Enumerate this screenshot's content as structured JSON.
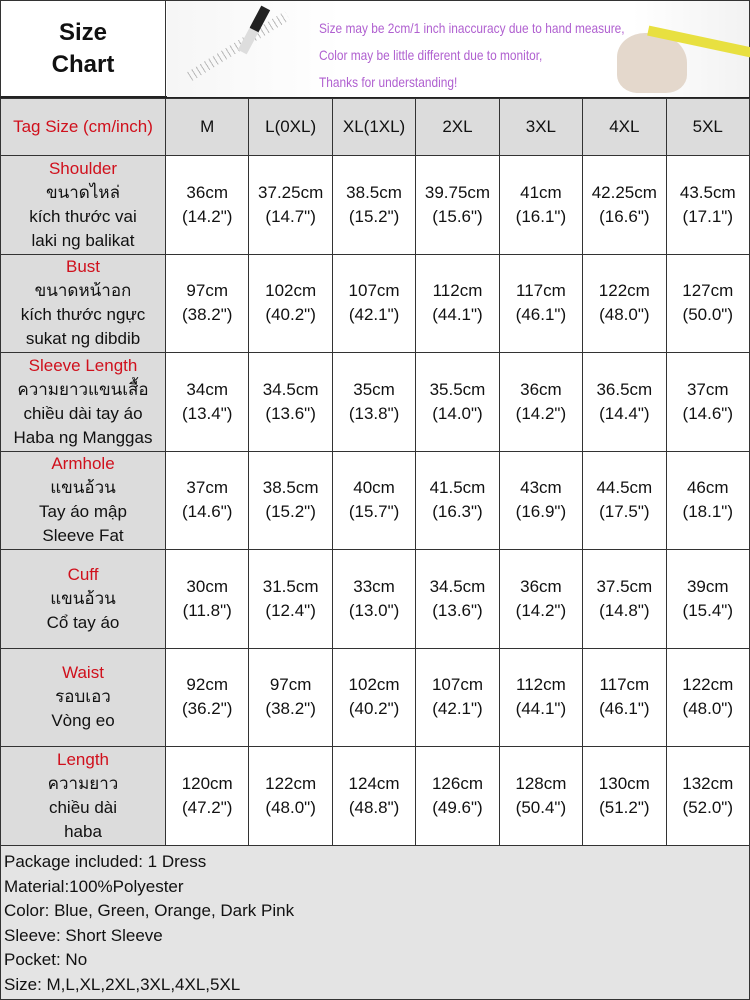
{
  "header": {
    "title_line1": "Size",
    "title_line2": "Chart",
    "notes": [
      "Size may be 2cm/1 inch inaccuracy due to hand measure,",
      "Color may be little different due to monitor,",
      "Thanks for understanding!"
    ]
  },
  "table": {
    "corner": "Tag Size (cm/inch)",
    "sizes": [
      "M",
      "L(0XL)",
      "XL(1XL)",
      "2XL",
      "3XL",
      "4XL",
      "5XL"
    ],
    "rows": [
      {
        "label": "Shoulder",
        "sub": [
          "ขนาดไหล่",
          "kích thước vai",
          "laki ng balikat"
        ],
        "cm": [
          "36cm",
          "37.25cm",
          "38.5cm",
          "39.75cm",
          "41cm",
          "42.25cm",
          "43.5cm"
        ],
        "inch": [
          "(14.2\")",
          "(14.7\")",
          "(15.2\")",
          "(15.6\")",
          "(16.1\")",
          "(16.6\")",
          "(17.1\")"
        ]
      },
      {
        "label": "Bust",
        "sub": [
          "ขนาดหน้าอก",
          "kích thước ngực",
          "sukat ng dibdib"
        ],
        "cm": [
          "97cm",
          "102cm",
          "107cm",
          "112cm",
          "117cm",
          "122cm",
          "127cm"
        ],
        "inch": [
          "(38.2\")",
          "(40.2\")",
          "(42.1\")",
          "(44.1\")",
          "(46.1\")",
          "(48.0\")",
          "(50.0\")"
        ]
      },
      {
        "label": "Sleeve Length",
        "sub": [
          "ความยาวแขนเสื้อ",
          "chiều dài tay áo",
          "Haba ng Manggas"
        ],
        "cm": [
          "34cm",
          "34.5cm",
          "35cm",
          "35.5cm",
          "36cm",
          "36.5cm",
          "37cm"
        ],
        "inch": [
          "(13.4\")",
          "(13.6\")",
          "(13.8\")",
          "(14.0\")",
          "(14.2\")",
          "(14.4\")",
          "(14.6\")"
        ]
      },
      {
        "label": "Armhole",
        "sub": [
          "แขนอ้วน",
          "Tay áo mập",
          "Sleeve Fat"
        ],
        "cm": [
          "37cm",
          "38.5cm",
          "40cm",
          "41.5cm",
          "43cm",
          "44.5cm",
          "46cm"
        ],
        "inch": [
          "(14.6\")",
          "(15.2\")",
          "(15.7\")",
          "(16.3\")",
          "(16.9\")",
          "(17.5\")",
          "(18.1\")"
        ]
      },
      {
        "label": "Cuff",
        "sub": [
          "แขนอ้วน",
          "Cổ tay áo"
        ],
        "cm": [
          "30cm",
          "31.5cm",
          "33cm",
          "34.5cm",
          "36cm",
          "37.5cm",
          "39cm"
        ],
        "inch": [
          "(11.8\")",
          "(12.4\")",
          "(13.0\")",
          "(13.6\")",
          "(14.2\")",
          "(14.8\")",
          "(15.4\")"
        ]
      },
      {
        "label": "Waist",
        "sub": [
          "รอบเอว",
          "Vòng eo"
        ],
        "cm": [
          "92cm",
          "97cm",
          "102cm",
          "107cm",
          "112cm",
          "117cm",
          "122cm"
        ],
        "inch": [
          "(36.2\")",
          "(38.2\")",
          "(40.2\")",
          "(42.1\")",
          "(44.1\")",
          "(46.1\")",
          "(48.0\")"
        ]
      },
      {
        "label": "Length",
        "sub": [
          "ความยาว",
          "chiều dài",
          "haba"
        ],
        "cm": [
          "120cm",
          "122cm",
          "124cm",
          "126cm",
          "128cm",
          "130cm",
          "132cm"
        ],
        "inch": [
          "(47.2\")",
          "(48.0\")",
          "(48.8\")",
          "(49.6\")",
          "(50.4\")",
          "(51.2\")",
          "(52.0\")"
        ]
      }
    ]
  },
  "footer": [
    "Package included: 1 Dress",
    "Material:100%Polyester",
    "Color: Blue, Green,  Orange, Dark Pink",
    "Sleeve: Short  Sleeve",
    "Pocket: No",
    "Size: M,L,XL,2XL,3XL,4XL,5XL"
  ]
}
